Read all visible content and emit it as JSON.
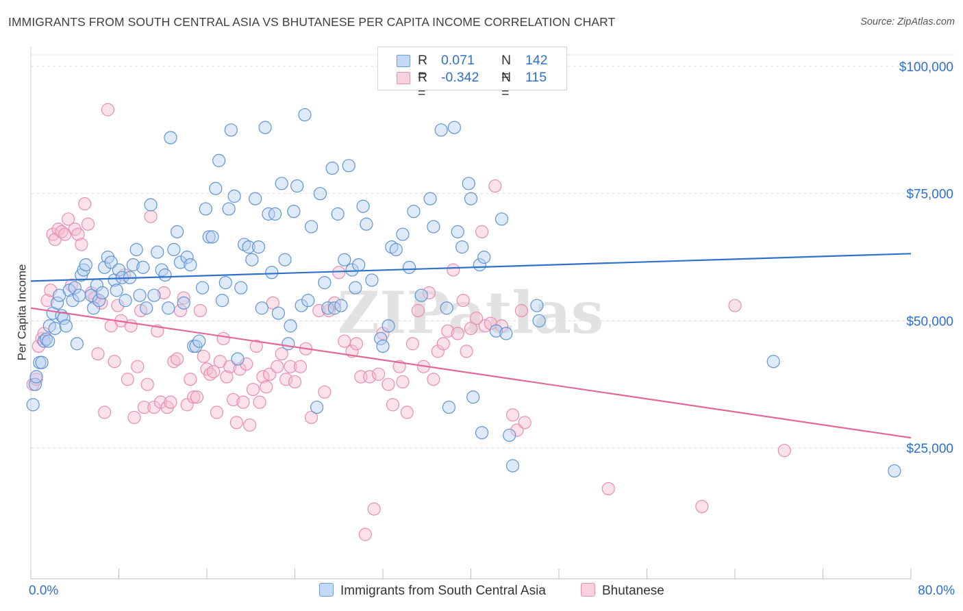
{
  "title": "IMMIGRANTS FROM SOUTH CENTRAL ASIA VS BHUTANESE PER CAPITA INCOME CORRELATION CHART",
  "source": "Source: ZipAtlas.com",
  "watermark": "ZIPatlas",
  "legend": {
    "rows": [
      {
        "r_label": "R =",
        "r_value": "0.071",
        "n_label": "N =",
        "n_value": "142"
      },
      {
        "r_label": "R =",
        "r_value": "-0.342",
        "n_label": "N =",
        "n_value": "115"
      }
    ]
  },
  "chart_data": {
    "type": "scatter",
    "ylabel": "Per Capita Income",
    "xlim": [
      0,
      80
    ],
    "ylim": [
      0,
      105000
    ],
    "x_tick_labels": [
      "0.0%",
      "80.0%"
    ],
    "y_tick_labels": [
      "$25,000",
      "$50,000",
      "$75,000",
      "$100,000"
    ],
    "y_ticks": [
      25000,
      50000,
      75000,
      100000
    ],
    "grid": "horizontal dashed",
    "legend_position": "top-center",
    "colors": {
      "blue": "#6b9edb",
      "pink": "#ea8fb1",
      "blue_line": "#2e72cc",
      "pink_line": "#e0689a"
    },
    "series": [
      {
        "name": "Immigrants from South Central Asia",
        "color": "#6b9edb",
        "trend": {
          "x": [
            0,
            80
          ],
          "y": [
            57800,
            63200
          ]
        },
        "points": [
          [
            0.2,
            33500
          ],
          [
            0.4,
            37500
          ],
          [
            0.5,
            39000
          ],
          [
            0.8,
            41800
          ],
          [
            1.0,
            41800
          ],
          [
            1.2,
            46000
          ],
          [
            1.4,
            46400
          ],
          [
            1.6,
            46000
          ],
          [
            1.7,
            49000
          ],
          [
            2.0,
            51500
          ],
          [
            2.2,
            48500
          ],
          [
            2.4,
            53500
          ],
          [
            2.6,
            55000
          ],
          [
            2.8,
            51000
          ],
          [
            3.0,
            50500
          ],
          [
            3.2,
            49000
          ],
          [
            3.5,
            56000
          ],
          [
            3.8,
            54000
          ],
          [
            4.0,
            56500
          ],
          [
            4.2,
            45500
          ],
          [
            4.4,
            55000
          ],
          [
            4.6,
            59000
          ],
          [
            4.8,
            60000
          ],
          [
            5.0,
            61000
          ],
          [
            5.5,
            55000
          ],
          [
            5.7,
            52500
          ],
          [
            6.0,
            57000
          ],
          [
            6.2,
            54000
          ],
          [
            6.5,
            55500
          ],
          [
            6.7,
            60500
          ],
          [
            7.0,
            62500
          ],
          [
            7.3,
            61500
          ],
          [
            7.6,
            58000
          ],
          [
            7.8,
            56000
          ],
          [
            8.0,
            60000
          ],
          [
            8.3,
            58500
          ],
          [
            8.6,
            54000
          ],
          [
            9.0,
            58500
          ],
          [
            9.3,
            61000
          ],
          [
            9.6,
            64000
          ],
          [
            9.9,
            55000
          ],
          [
            10.2,
            60500
          ],
          [
            10.5,
            52500
          ],
          [
            10.9,
            72800
          ],
          [
            11.2,
            55000
          ],
          [
            11.5,
            63500
          ],
          [
            11.9,
            60000
          ],
          [
            12.2,
            59000
          ],
          [
            12.5,
            52500
          ],
          [
            12.7,
            86000
          ],
          [
            13.0,
            64000
          ],
          [
            13.3,
            67500
          ],
          [
            13.6,
            61500
          ],
          [
            13.9,
            53500
          ],
          [
            14.2,
            62500
          ],
          [
            14.5,
            61000
          ],
          [
            14.8,
            45000
          ],
          [
            15.0,
            45000
          ],
          [
            15.3,
            46000
          ],
          [
            15.6,
            56500
          ],
          [
            15.9,
            72000
          ],
          [
            16.2,
            66500
          ],
          [
            16.5,
            66500
          ],
          [
            16.8,
            76000
          ],
          [
            17.1,
            81500
          ],
          [
            17.4,
            54000
          ],
          [
            17.7,
            57500
          ],
          [
            18.0,
            72000
          ],
          [
            18.2,
            87500
          ],
          [
            18.5,
            74500
          ],
          [
            18.8,
            42500
          ],
          [
            19.1,
            56500
          ],
          [
            19.4,
            65000
          ],
          [
            19.8,
            64500
          ],
          [
            20.1,
            62000
          ],
          [
            20.4,
            74000
          ],
          [
            20.7,
            64500
          ],
          [
            21.0,
            52500
          ],
          [
            21.3,
            88000
          ],
          [
            21.6,
            71000
          ],
          [
            21.9,
            59500
          ],
          [
            22.2,
            71000
          ],
          [
            22.5,
            51500
          ],
          [
            22.8,
            77000
          ],
          [
            23.1,
            62000
          ],
          [
            23.4,
            45500
          ],
          [
            23.6,
            49000
          ],
          [
            23.9,
            71500
          ],
          [
            24.2,
            76500
          ],
          [
            24.6,
            53000
          ],
          [
            24.9,
            90500
          ],
          [
            25.2,
            54000
          ],
          [
            25.5,
            68500
          ],
          [
            26.0,
            33000
          ],
          [
            26.3,
            75000
          ],
          [
            26.7,
            57500
          ],
          [
            27.0,
            52500
          ],
          [
            27.4,
            80000
          ],
          [
            27.6,
            52500
          ],
          [
            27.9,
            71000
          ],
          [
            28.2,
            53000
          ],
          [
            28.5,
            62000
          ],
          [
            28.9,
            80500
          ],
          [
            29.2,
            60000
          ],
          [
            29.5,
            56500
          ],
          [
            29.8,
            61000
          ],
          [
            30.2,
            72500
          ],
          [
            30.5,
            69000
          ],
          [
            31.0,
            58000
          ],
          [
            31.8,
            46500
          ],
          [
            32.0,
            45000
          ],
          [
            32.5,
            49000
          ],
          [
            32.8,
            64500
          ],
          [
            33.2,
            64000
          ],
          [
            33.8,
            67000
          ],
          [
            34.4,
            60500
          ],
          [
            34.8,
            71500
          ],
          [
            35.5,
            55000
          ],
          [
            36.3,
            74000
          ],
          [
            36.6,
            68500
          ],
          [
            37.3,
            87500
          ],
          [
            37.8,
            52500
          ],
          [
            38.0,
            33000
          ],
          [
            38.5,
            88000
          ],
          [
            38.8,
            67500
          ],
          [
            39.2,
            64500
          ],
          [
            39.8,
            77000
          ],
          [
            40.0,
            74000
          ],
          [
            40.2,
            35000
          ],
          [
            40.8,
            61000
          ],
          [
            41.0,
            28000
          ],
          [
            41.2,
            62500
          ],
          [
            42.3,
            48000
          ],
          [
            42.8,
            70000
          ],
          [
            43.2,
            47500
          ],
          [
            46.0,
            53000
          ],
          [
            46.2,
            50000
          ],
          [
            43.5,
            27500
          ],
          [
            43.8,
            21500
          ],
          [
            67.5,
            42000
          ],
          [
            78.5,
            20500
          ]
        ]
      },
      {
        "name": "Bhutanese",
        "color": "#ea8fb1",
        "trend": {
          "x": [
            0,
            80
          ],
          "y": [
            52500,
            27000
          ]
        },
        "points": [
          [
            0.2,
            37500
          ],
          [
            0.5,
            38500
          ],
          [
            0.7,
            45000
          ],
          [
            1.0,
            46500
          ],
          [
            1.2,
            47500
          ],
          [
            1.5,
            54000
          ],
          [
            1.8,
            56000
          ],
          [
            2.0,
            67000
          ],
          [
            2.2,
            66000
          ],
          [
            2.5,
            68000
          ],
          [
            2.8,
            67500
          ],
          [
            3.1,
            67000
          ],
          [
            3.4,
            70000
          ],
          [
            3.7,
            57000
          ],
          [
            4.0,
            68000
          ],
          [
            4.3,
            67000
          ],
          [
            4.6,
            65000
          ],
          [
            4.9,
            73000
          ],
          [
            5.2,
            69000
          ],
          [
            5.5,
            55500
          ],
          [
            5.8,
            54500
          ],
          [
            6.1,
            43500
          ],
          [
            6.4,
            53500
          ],
          [
            6.7,
            32000
          ],
          [
            7.0,
            91500
          ],
          [
            7.3,
            49000
          ],
          [
            7.6,
            42000
          ],
          [
            7.9,
            53000
          ],
          [
            8.2,
            50000
          ],
          [
            8.5,
            59000
          ],
          [
            8.8,
            38500
          ],
          [
            9.1,
            49000
          ],
          [
            9.4,
            31000
          ],
          [
            9.7,
            41000
          ],
          [
            10.0,
            52000
          ],
          [
            10.3,
            33000
          ],
          [
            10.6,
            37500
          ],
          [
            10.9,
            70500
          ],
          [
            11.2,
            33000
          ],
          [
            11.5,
            48000
          ],
          [
            11.8,
            34000
          ],
          [
            12.1,
            55500
          ],
          [
            12.4,
            33000
          ],
          [
            12.7,
            34000
          ],
          [
            13.0,
            42000
          ],
          [
            13.3,
            42500
          ],
          [
            13.6,
            52000
          ],
          [
            13.9,
            54500
          ],
          [
            14.2,
            33500
          ],
          [
            14.5,
            38500
          ],
          [
            14.8,
            35000
          ],
          [
            15.1,
            35000
          ],
          [
            15.4,
            52000
          ],
          [
            15.7,
            43000
          ],
          [
            16.0,
            40500
          ],
          [
            16.3,
            39500
          ],
          [
            16.6,
            40000
          ],
          [
            16.9,
            32000
          ],
          [
            17.2,
            42000
          ],
          [
            17.5,
            46500
          ],
          [
            17.8,
            39000
          ],
          [
            18.1,
            41000
          ],
          [
            18.4,
            34500
          ],
          [
            18.7,
            30000
          ],
          [
            19.0,
            40500
          ],
          [
            19.3,
            34000
          ],
          [
            19.6,
            41500
          ],
          [
            19.9,
            29500
          ],
          [
            20.2,
            36500
          ],
          [
            20.5,
            45000
          ],
          [
            20.8,
            34000
          ],
          [
            21.1,
            39000
          ],
          [
            21.4,
            37000
          ],
          [
            21.7,
            39500
          ],
          [
            22.0,
            53500
          ],
          [
            22.4,
            41000
          ],
          [
            22.8,
            43500
          ],
          [
            23.2,
            38500
          ],
          [
            23.6,
            41000
          ],
          [
            24.0,
            38000
          ],
          [
            24.5,
            41000
          ],
          [
            25.0,
            44500
          ],
          [
            25.5,
            31000
          ],
          [
            26.2,
            52000
          ],
          [
            26.7,
            36000
          ],
          [
            27.1,
            52000
          ],
          [
            27.6,
            53500
          ],
          [
            28.0,
            59500
          ],
          [
            28.5,
            46000
          ],
          [
            29.2,
            44000
          ],
          [
            29.6,
            45500
          ],
          [
            30.0,
            39000
          ],
          [
            30.4,
            8000
          ],
          [
            30.8,
            39000
          ],
          [
            31.2,
            13000
          ],
          [
            31.6,
            39500
          ],
          [
            32.0,
            47500
          ],
          [
            32.5,
            37500
          ],
          [
            32.9,
            33500
          ],
          [
            33.5,
            41000
          ],
          [
            33.8,
            38000
          ],
          [
            34.2,
            32000
          ],
          [
            34.7,
            45500
          ],
          [
            35.2,
            52000
          ],
          [
            35.7,
            41000
          ],
          [
            36.2,
            55500
          ],
          [
            36.6,
            38500
          ],
          [
            37.0,
            44000
          ],
          [
            37.5,
            45500
          ],
          [
            37.9,
            48000
          ],
          [
            38.4,
            60000
          ],
          [
            38.8,
            47500
          ],
          [
            39.3,
            54000
          ],
          [
            39.6,
            44000
          ],
          [
            40.0,
            48500
          ],
          [
            40.5,
            50500
          ],
          [
            41.0,
            67500
          ],
          [
            41.3,
            49000
          ],
          [
            41.8,
            49500
          ],
          [
            42.8,
            49000
          ],
          [
            42.2,
            76500
          ],
          [
            43.8,
            31500
          ],
          [
            44.2,
            28500
          ],
          [
            44.6,
            52000
          ],
          [
            44.9,
            30000
          ],
          [
            52.5,
            17000
          ],
          [
            61.0,
            13500
          ],
          [
            64.0,
            53000
          ],
          [
            68.5,
            24500
          ]
        ]
      }
    ]
  }
}
